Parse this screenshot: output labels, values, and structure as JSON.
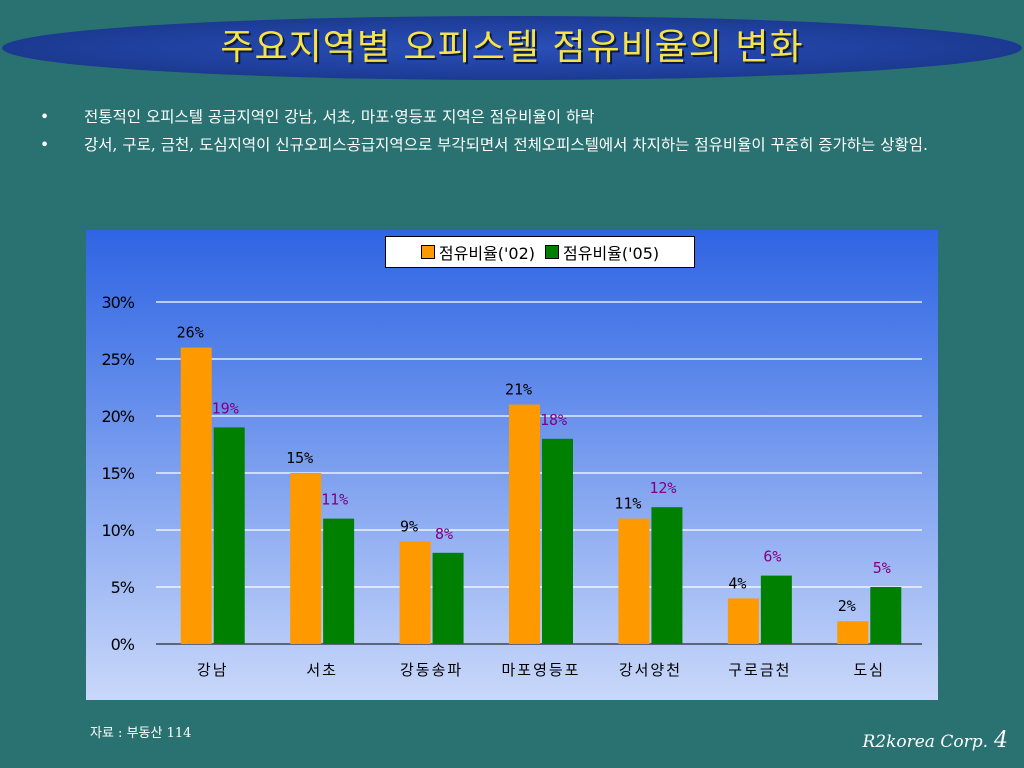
{
  "title": "주요지역별 오피스텔 점유비율의 변화",
  "bullets": [
    "전통적인 오피스텔 공급지역인 강남, 서초, 마포·영등포 지역은 점유비율이 하락",
    "강서, 구로, 금천, 도심지역이 신규오피스공급지역으로 부각되면서 전체오피스텔에서 차지하는 점유비율이 꾸준히 증가하는 상황임."
  ],
  "bullet_symbol": "•",
  "chart_data": {
    "type": "bar",
    "categories": [
      "강남",
      "서초",
      "강동송파",
      "마포영등포",
      "강서양천",
      "구로금천",
      "도심"
    ],
    "series": [
      {
        "name": "점유비율('02)",
        "values": [
          26,
          15,
          9,
          21,
          11,
          4,
          2
        ],
        "labels": [
          "26%",
          "15%",
          "9%",
          "21%",
          "11%",
          "4%",
          "2%"
        ],
        "color": "#ff9900",
        "label_color": "#000000"
      },
      {
        "name": "점유비율('05)",
        "values": [
          19,
          11,
          8,
          18,
          12,
          6,
          5
        ],
        "labels": [
          "19%",
          "11%",
          "8%",
          "18%",
          "12%",
          "6%",
          "5%"
        ],
        "color": "#008000",
        "label_color": "#800080"
      }
    ],
    "yticks": [
      "0%",
      "5%",
      "10%",
      "15%",
      "20%",
      "25%",
      "30%"
    ],
    "ylim": [
      0,
      30
    ],
    "grid": true,
    "legend_position": "top"
  },
  "source": "자료 : 부동산 114",
  "footer": {
    "brand": "R2korea Corp.",
    "page": "4"
  }
}
